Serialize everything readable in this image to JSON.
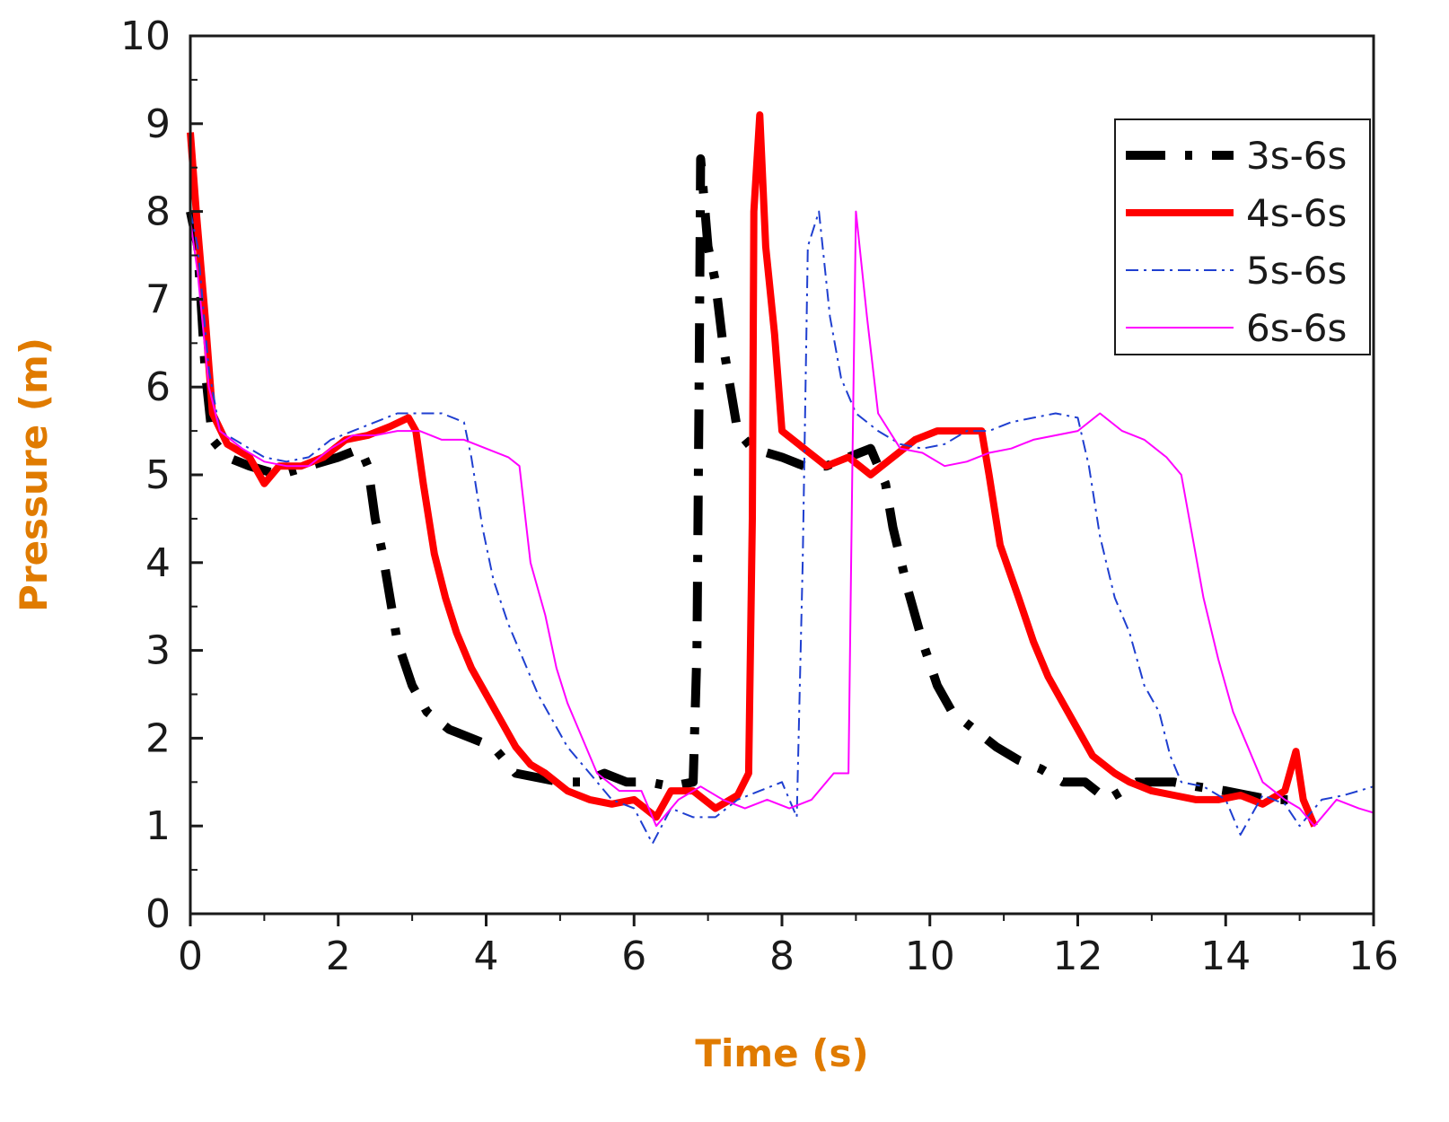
{
  "chart_data": {
    "type": "line",
    "title": "",
    "xlabel": "Time (s)",
    "ylabel": "Pressure (m)",
    "xlim": [
      0,
      16
    ],
    "ylim": [
      0,
      10
    ],
    "x_ticks": [
      "0",
      "2",
      "4",
      "6",
      "8",
      "10",
      "12",
      "14",
      "16"
    ],
    "y_ticks": [
      "0",
      "1",
      "2",
      "3",
      "4",
      "5",
      "6",
      "7",
      "8",
      "9",
      "10"
    ],
    "grid": false,
    "legend_position": "top-right",
    "axis_title_color": "#e07b00",
    "series": [
      {
        "name": "3s-6s",
        "color": "#000000",
        "style": "dash-dot-thick",
        "points": [
          [
            0,
            8.0
          ],
          [
            0.1,
            7.6
          ],
          [
            0.2,
            6.2
          ],
          [
            0.3,
            5.4
          ],
          [
            0.5,
            5.2
          ],
          [
            0.8,
            5.1
          ],
          [
            1.2,
            5.0
          ],
          [
            1.6,
            5.1
          ],
          [
            2.0,
            5.2
          ],
          [
            2.3,
            5.3
          ],
          [
            2.4,
            5.1
          ],
          [
            2.5,
            4.5
          ],
          [
            2.6,
            4.1
          ],
          [
            2.7,
            3.6
          ],
          [
            2.8,
            3.1
          ],
          [
            3.0,
            2.6
          ],
          [
            3.2,
            2.3
          ],
          [
            3.5,
            2.1
          ],
          [
            3.8,
            2.0
          ],
          [
            4.1,
            1.9
          ],
          [
            4.4,
            1.6
          ],
          [
            4.7,
            1.55
          ],
          [
            5.0,
            1.5
          ],
          [
            5.3,
            1.5
          ],
          [
            5.6,
            1.6
          ],
          [
            5.9,
            1.5
          ],
          [
            6.2,
            1.5
          ],
          [
            6.5,
            1.45
          ],
          [
            6.8,
            1.5
          ],
          [
            6.85,
            3.0
          ],
          [
            6.88,
            6.0
          ],
          [
            6.9,
            8.6
          ],
          [
            7.0,
            7.6
          ],
          [
            7.1,
            7.2
          ],
          [
            7.2,
            6.5
          ],
          [
            7.4,
            5.5
          ],
          [
            7.6,
            5.3
          ],
          [
            7.8,
            5.25
          ],
          [
            8.0,
            5.2
          ],
          [
            8.3,
            5.1
          ],
          [
            8.6,
            5.1
          ],
          [
            8.9,
            5.2
          ],
          [
            9.2,
            5.3
          ],
          [
            9.4,
            4.9
          ],
          [
            9.5,
            4.4
          ],
          [
            9.7,
            3.7
          ],
          [
            9.9,
            3.1
          ],
          [
            10.1,
            2.6
          ],
          [
            10.3,
            2.3
          ],
          [
            10.6,
            2.1
          ],
          [
            10.9,
            1.9
          ],
          [
            11.2,
            1.75
          ],
          [
            11.5,
            1.65
          ],
          [
            11.8,
            1.5
          ],
          [
            12.1,
            1.5
          ],
          [
            12.4,
            1.3
          ],
          [
            12.6,
            1.4
          ],
          [
            12.8,
            1.5
          ],
          [
            13.0,
            1.5
          ],
          [
            13.3,
            1.5
          ],
          [
            13.6,
            1.45
          ],
          [
            14.0,
            1.4
          ],
          [
            14.3,
            1.35
          ],
          [
            14.6,
            1.3
          ],
          [
            14.9,
            1.3
          ]
        ]
      },
      {
        "name": "4s-6s",
        "color": "#ff0000",
        "style": "solid-thick",
        "points": [
          [
            0,
            8.9
          ],
          [
            0.08,
            8.0
          ],
          [
            0.2,
            6.8
          ],
          [
            0.3,
            5.7
          ],
          [
            0.5,
            5.35
          ],
          [
            0.8,
            5.2
          ],
          [
            1.0,
            4.9
          ],
          [
            1.2,
            5.1
          ],
          [
            1.5,
            5.1
          ],
          [
            1.8,
            5.2
          ],
          [
            2.1,
            5.4
          ],
          [
            2.4,
            5.45
          ],
          [
            2.7,
            5.55
          ],
          [
            2.95,
            5.65
          ],
          [
            3.05,
            5.5
          ],
          [
            3.15,
            4.9
          ],
          [
            3.3,
            4.1
          ],
          [
            3.45,
            3.6
          ],
          [
            3.6,
            3.2
          ],
          [
            3.8,
            2.8
          ],
          [
            4.0,
            2.5
          ],
          [
            4.2,
            2.2
          ],
          [
            4.4,
            1.9
          ],
          [
            4.6,
            1.7
          ],
          [
            4.8,
            1.6
          ],
          [
            5.1,
            1.4
          ],
          [
            5.4,
            1.3
          ],
          [
            5.7,
            1.25
          ],
          [
            6.0,
            1.3
          ],
          [
            6.3,
            1.1
          ],
          [
            6.5,
            1.4
          ],
          [
            6.8,
            1.4
          ],
          [
            7.1,
            1.2
          ],
          [
            7.4,
            1.35
          ],
          [
            7.55,
            1.6
          ],
          [
            7.6,
            4.5
          ],
          [
            7.62,
            8.0
          ],
          [
            7.7,
            9.1
          ],
          [
            7.78,
            7.6
          ],
          [
            7.9,
            6.6
          ],
          [
            8.0,
            5.5
          ],
          [
            8.3,
            5.3
          ],
          [
            8.6,
            5.1
          ],
          [
            8.9,
            5.2
          ],
          [
            9.2,
            5.0
          ],
          [
            9.5,
            5.2
          ],
          [
            9.8,
            5.4
          ],
          [
            10.1,
            5.5
          ],
          [
            10.4,
            5.5
          ],
          [
            10.7,
            5.5
          ],
          [
            10.8,
            5.0
          ],
          [
            10.95,
            4.2
          ],
          [
            11.2,
            3.6
          ],
          [
            11.4,
            3.1
          ],
          [
            11.6,
            2.7
          ],
          [
            11.8,
            2.4
          ],
          [
            12.0,
            2.1
          ],
          [
            12.2,
            1.8
          ],
          [
            12.5,
            1.6
          ],
          [
            12.7,
            1.5
          ],
          [
            13.0,
            1.4
          ],
          [
            13.3,
            1.35
          ],
          [
            13.6,
            1.3
          ],
          [
            13.9,
            1.3
          ],
          [
            14.2,
            1.35
          ],
          [
            14.5,
            1.25
          ],
          [
            14.8,
            1.4
          ],
          [
            14.95,
            1.85
          ],
          [
            15.05,
            1.3
          ],
          [
            15.2,
            1.0
          ]
        ]
      },
      {
        "name": "5s-6s",
        "color": "#1f3fd0",
        "style": "dash-dot-thin",
        "points": [
          [
            0,
            8.0
          ],
          [
            0.1,
            7.6
          ],
          [
            0.25,
            6.2
          ],
          [
            0.4,
            5.5
          ],
          [
            0.7,
            5.35
          ],
          [
            1.0,
            5.2
          ],
          [
            1.3,
            5.15
          ],
          [
            1.6,
            5.2
          ],
          [
            1.9,
            5.4
          ],
          [
            2.2,
            5.5
          ],
          [
            2.5,
            5.6
          ],
          [
            2.8,
            5.7
          ],
          [
            3.1,
            5.7
          ],
          [
            3.4,
            5.7
          ],
          [
            3.7,
            5.6
          ],
          [
            3.8,
            5.2
          ],
          [
            3.95,
            4.4
          ],
          [
            4.1,
            3.8
          ],
          [
            4.3,
            3.3
          ],
          [
            4.5,
            2.9
          ],
          [
            4.7,
            2.5
          ],
          [
            4.9,
            2.2
          ],
          [
            5.1,
            1.9
          ],
          [
            5.3,
            1.7
          ],
          [
            5.5,
            1.5
          ],
          [
            5.7,
            1.3
          ],
          [
            6.0,
            1.2
          ],
          [
            6.25,
            0.8
          ],
          [
            6.5,
            1.2
          ],
          [
            6.8,
            1.1
          ],
          [
            7.1,
            1.1
          ],
          [
            7.4,
            1.3
          ],
          [
            7.7,
            1.4
          ],
          [
            8.0,
            1.5
          ],
          [
            8.2,
            1.1
          ],
          [
            8.28,
            4.0
          ],
          [
            8.35,
            7.6
          ],
          [
            8.5,
            8.0
          ],
          [
            8.65,
            6.8
          ],
          [
            8.8,
            6.1
          ],
          [
            9.0,
            5.7
          ],
          [
            9.3,
            5.5
          ],
          [
            9.6,
            5.35
          ],
          [
            9.9,
            5.3
          ],
          [
            10.2,
            5.35
          ],
          [
            10.5,
            5.5
          ],
          [
            10.8,
            5.5
          ],
          [
            11.1,
            5.6
          ],
          [
            11.4,
            5.65
          ],
          [
            11.7,
            5.7
          ],
          [
            12.0,
            5.65
          ],
          [
            12.15,
            5.1
          ],
          [
            12.3,
            4.3
          ],
          [
            12.5,
            3.6
          ],
          [
            12.7,
            3.2
          ],
          [
            12.9,
            2.6
          ],
          [
            13.1,
            2.3
          ],
          [
            13.25,
            1.8
          ],
          [
            13.4,
            1.5
          ],
          [
            13.7,
            1.45
          ],
          [
            14.0,
            1.3
          ],
          [
            14.2,
            0.9
          ],
          [
            14.5,
            1.35
          ],
          [
            14.8,
            1.25
          ],
          [
            15.0,
            1.0
          ],
          [
            15.3,
            1.3
          ],
          [
            15.6,
            1.35
          ],
          [
            16.0,
            1.45
          ]
        ]
      },
      {
        "name": "6s-6s",
        "color": "#ff00ff",
        "style": "solid-thin",
        "points": [
          [
            0,
            7.9
          ],
          [
            0.1,
            7.3
          ],
          [
            0.25,
            6.0
          ],
          [
            0.4,
            5.5
          ],
          [
            0.7,
            5.3
          ],
          [
            1.0,
            5.15
          ],
          [
            1.3,
            5.1
          ],
          [
            1.6,
            5.1
          ],
          [
            1.9,
            5.3
          ],
          [
            2.2,
            5.45
          ],
          [
            2.5,
            5.45
          ],
          [
            2.8,
            5.5
          ],
          [
            3.1,
            5.5
          ],
          [
            3.4,
            5.4
          ],
          [
            3.7,
            5.4
          ],
          [
            4.0,
            5.3
          ],
          [
            4.3,
            5.2
          ],
          [
            4.45,
            5.1
          ],
          [
            4.6,
            4.0
          ],
          [
            4.8,
            3.4
          ],
          [
            4.95,
            2.8
          ],
          [
            5.1,
            2.4
          ],
          [
            5.3,
            2.0
          ],
          [
            5.5,
            1.6
          ],
          [
            5.8,
            1.4
          ],
          [
            6.1,
            1.4
          ],
          [
            6.3,
            1.0
          ],
          [
            6.6,
            1.3
          ],
          [
            6.9,
            1.45
          ],
          [
            7.2,
            1.3
          ],
          [
            7.5,
            1.2
          ],
          [
            7.8,
            1.3
          ],
          [
            8.1,
            1.2
          ],
          [
            8.4,
            1.3
          ],
          [
            8.7,
            1.6
          ],
          [
            8.9,
            1.6
          ],
          [
            8.95,
            5.0
          ],
          [
            9.0,
            8.0
          ],
          [
            9.15,
            6.8
          ],
          [
            9.3,
            5.7
          ],
          [
            9.6,
            5.3
          ],
          [
            9.9,
            5.25
          ],
          [
            10.2,
            5.1
          ],
          [
            10.5,
            5.15
          ],
          [
            10.8,
            5.25
          ],
          [
            11.1,
            5.3
          ],
          [
            11.4,
            5.4
          ],
          [
            11.7,
            5.45
          ],
          [
            12.0,
            5.5
          ],
          [
            12.3,
            5.7
          ],
          [
            12.6,
            5.5
          ],
          [
            12.9,
            5.4
          ],
          [
            13.2,
            5.2
          ],
          [
            13.4,
            5.0
          ],
          [
            13.55,
            4.3
          ],
          [
            13.7,
            3.6
          ],
          [
            13.9,
            2.9
          ],
          [
            14.1,
            2.3
          ],
          [
            14.3,
            1.9
          ],
          [
            14.5,
            1.5
          ],
          [
            14.8,
            1.3
          ],
          [
            15.0,
            1.2
          ],
          [
            15.2,
            1.0
          ],
          [
            15.5,
            1.3
          ],
          [
            15.8,
            1.2
          ],
          [
            16.0,
            1.15
          ]
        ]
      }
    ]
  }
}
